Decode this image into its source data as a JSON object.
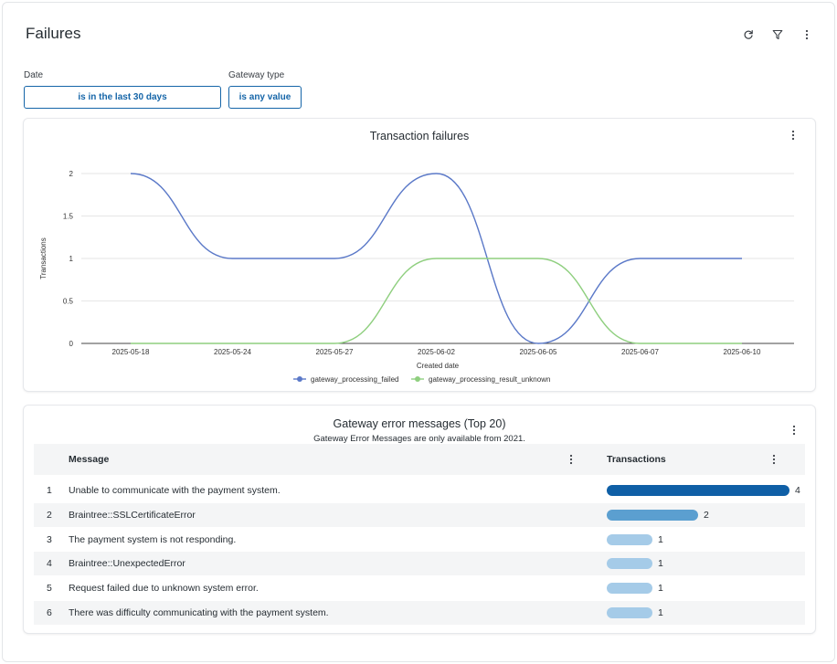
{
  "page": {
    "title": "Failures"
  },
  "icons": {
    "refresh": "refresh-icon",
    "filter": "filter-icon",
    "more": "more-vertical-icon"
  },
  "filters": [
    {
      "label": "Date",
      "value": "is in the last 30 days"
    },
    {
      "label": "Gateway type",
      "value": "is any value"
    }
  ],
  "colors": {
    "accent": "#1565a8",
    "series_failed": "#5b79c8",
    "series_unknown": "#8fcf7f"
  },
  "chart_card": {
    "title": "Transaction failures",
    "chart_data": {
      "type": "line",
      "title": "Transaction failures",
      "xlabel": "Created date",
      "ylabel": "Transactions",
      "x": [
        "2025-05-18",
        "2025-05-24",
        "2025-05-27",
        "2025-06-02",
        "2025-06-05",
        "2025-06-07",
        "2025-06-10"
      ],
      "yticks": [
        "0",
        "0.5",
        "1",
        "1.5",
        "2"
      ],
      "ylim": [
        0,
        2
      ],
      "grid": true,
      "legend": "bottom",
      "series": [
        {
          "name": "gateway_processing_failed",
          "color": "#5b79c8",
          "values": [
            2,
            1,
            1,
            2,
            0,
            1,
            1
          ]
        },
        {
          "name": "gateway_processing_result_unknown",
          "color": "#8fcf7f",
          "values": [
            0,
            0,
            0,
            1,
            1,
            0,
            0
          ]
        }
      ]
    }
  },
  "table_card": {
    "title": "Gateway error messages (Top 20)",
    "subtitle": "Gateway Error Messages are only available from 2021.",
    "columns": {
      "message": "Message",
      "transactions": "Transactions"
    },
    "rows": [
      {
        "n": "1",
        "message": "Unable to communicate with the payment system.",
        "value": 4,
        "label": "4"
      },
      {
        "n": "2",
        "message": "Braintree::SSLCertificateError",
        "value": 2,
        "label": "2"
      },
      {
        "n": "3",
        "message": "The payment system is not responding.",
        "value": 1,
        "label": "1"
      },
      {
        "n": "4",
        "message": "Braintree::UnexpectedError",
        "value": 1,
        "label": "1"
      },
      {
        "n": "5",
        "message": "Request failed due to unknown system error.",
        "value": 1,
        "label": "1"
      },
      {
        "n": "6",
        "message": "There was difficulty communicating with the payment system.",
        "value": 1,
        "label": "1"
      }
    ],
    "bar_colors": [
      "#0f5fa6",
      "#5b9fd0",
      "#a5cbe8"
    ]
  }
}
